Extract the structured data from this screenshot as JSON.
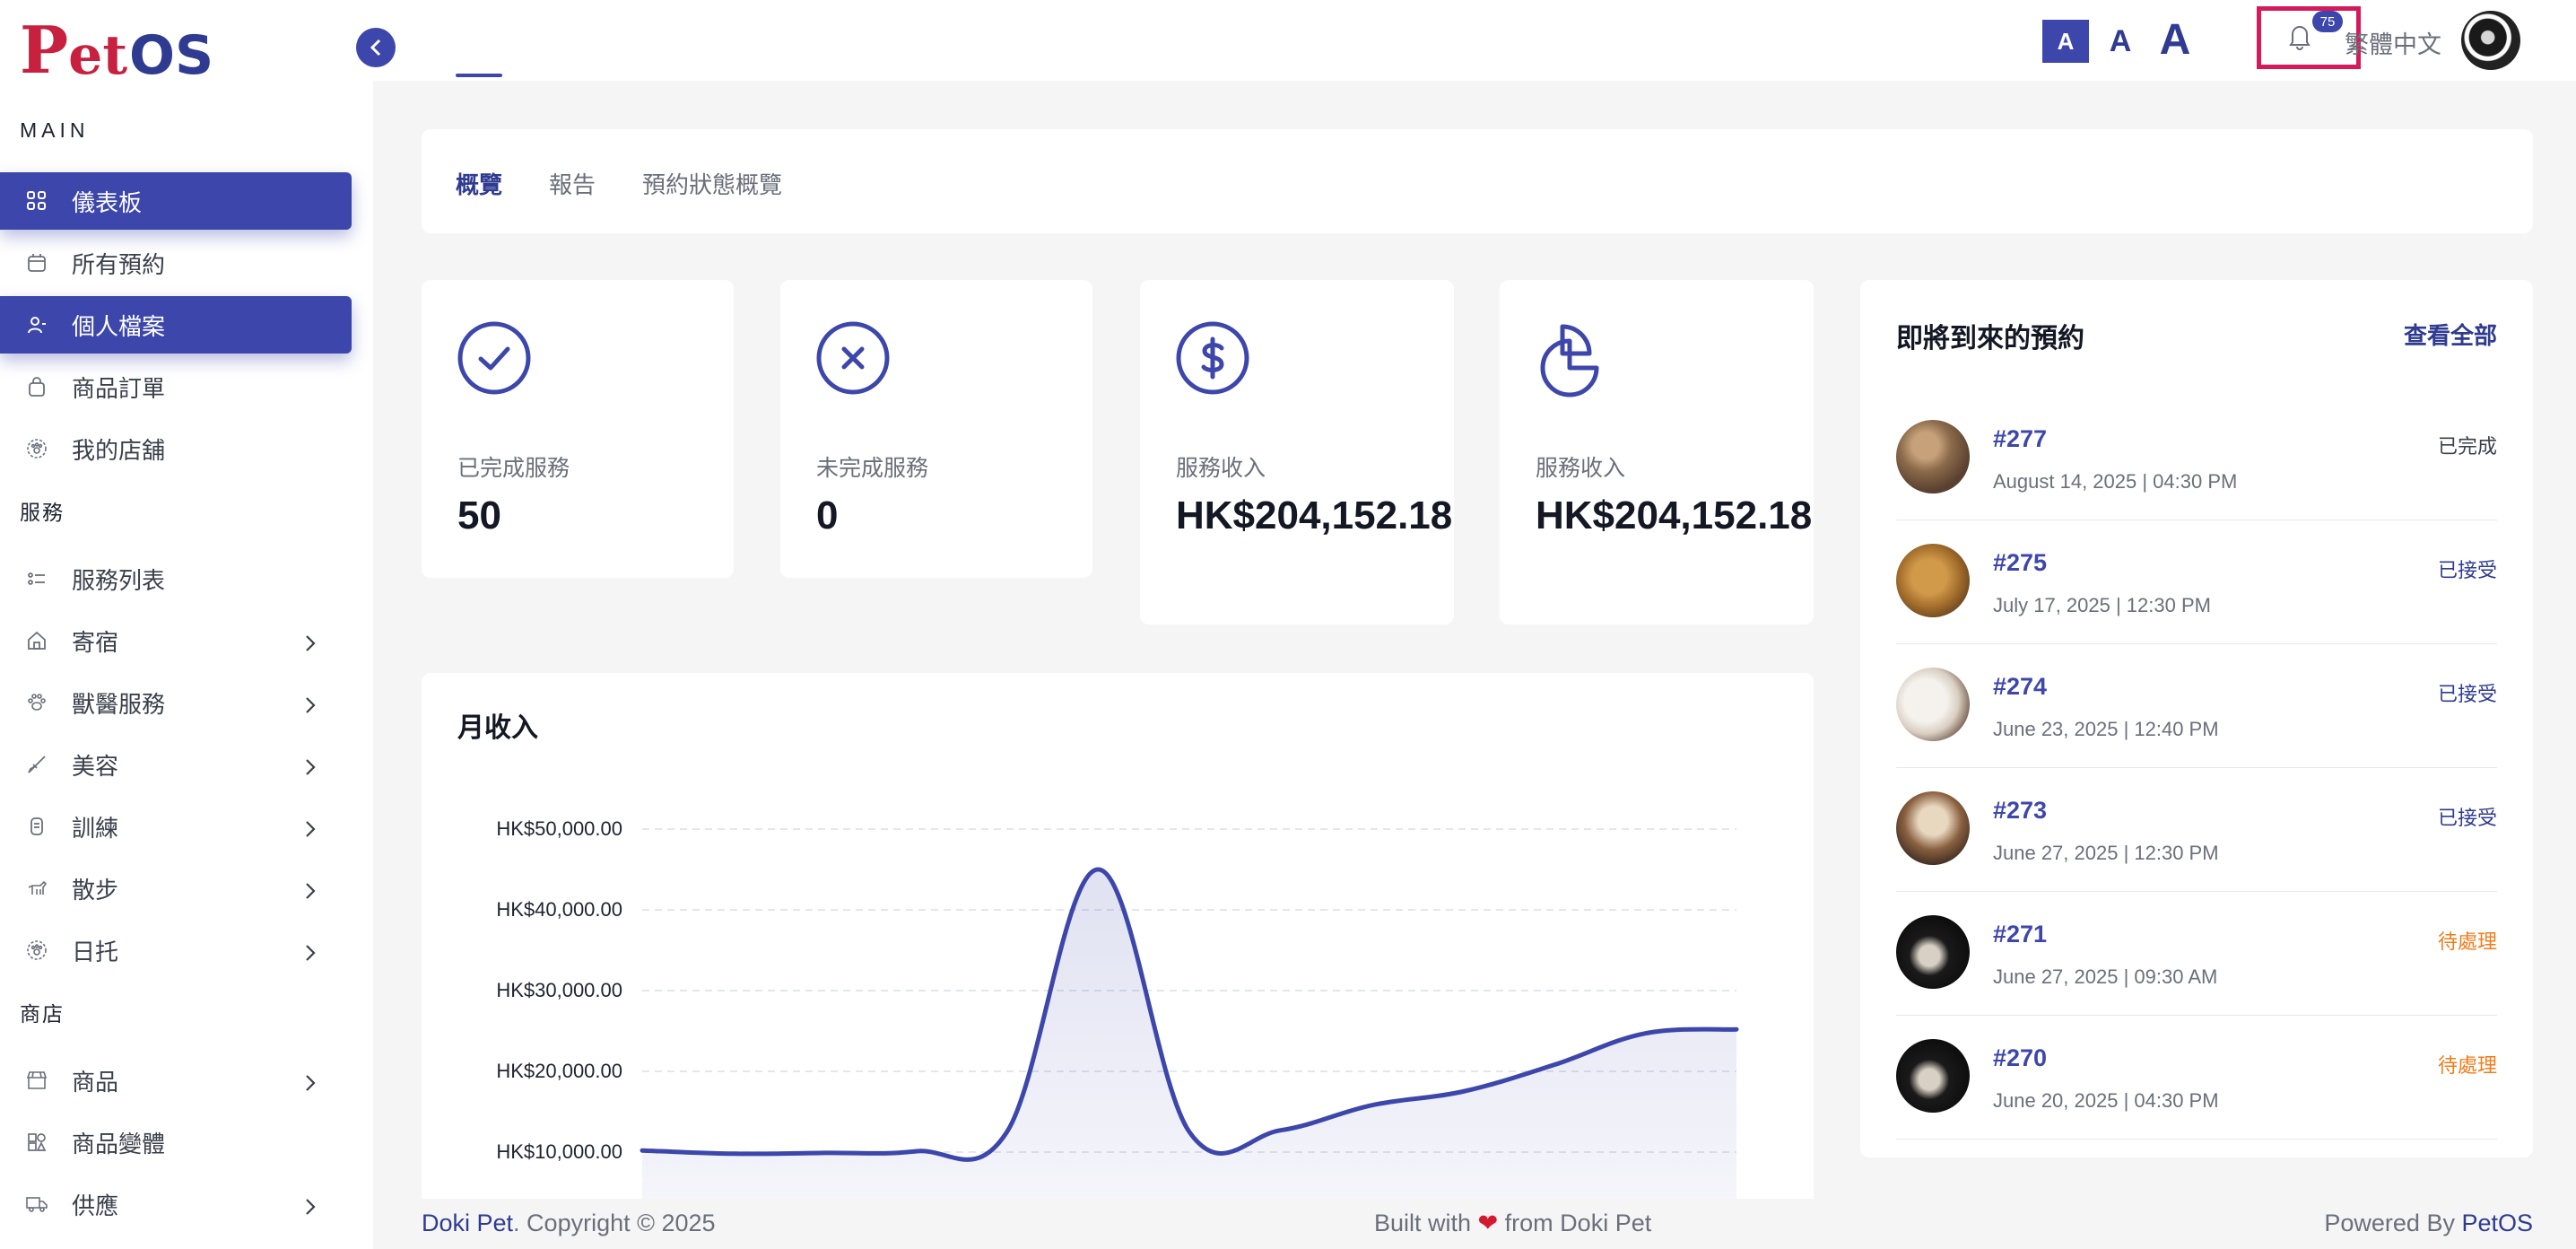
{
  "brand": {
    "logo_text_1": "P",
    "logo_text_2": "et",
    "logo_text_3": "OS"
  },
  "sidebar": {
    "section_main": "MAIN",
    "section_services": "服務",
    "section_shop": "商店",
    "items": [
      {
        "label": "儀表板",
        "icon": "grid-icon",
        "active": true
      },
      {
        "label": "所有預約",
        "icon": "calendar-icon",
        "active": false
      },
      {
        "label": "個人檔案",
        "icon": "user-icon",
        "active": true
      },
      {
        "label": "商品訂單",
        "icon": "bag-icon",
        "active": false
      },
      {
        "label": "我的店舖",
        "icon": "paw-badge-icon",
        "active": false
      },
      {
        "label": "服務列表",
        "icon": "list-icon",
        "active": false
      },
      {
        "label": "寄宿",
        "icon": "house-icon",
        "active": false
      },
      {
        "label": "獸醫服務",
        "icon": "paw-icon",
        "active": false
      },
      {
        "label": "美容",
        "icon": "brush-icon",
        "active": false
      },
      {
        "label": "訓練",
        "icon": "medal-icon",
        "active": false
      },
      {
        "label": "散步",
        "icon": "dog-walk-icon",
        "active": false
      },
      {
        "label": "日托",
        "icon": "paw-badge-icon",
        "active": false
      },
      {
        "label": "商品",
        "icon": "store-icon",
        "active": false
      },
      {
        "label": "商品變體",
        "icon": "variants-icon",
        "active": false
      },
      {
        "label": "供應",
        "icon": "truck-icon",
        "active": false
      }
    ]
  },
  "topbar": {
    "font_small": "A",
    "font_medium": "A",
    "font_large": "A",
    "notification_count": "75",
    "language": "繁體中文"
  },
  "tabs": [
    {
      "label": "概覽",
      "active": true
    },
    {
      "label": "報告",
      "active": false
    },
    {
      "label": "預約狀態概覽",
      "active": false
    }
  ],
  "stats": [
    {
      "label": "已完成服務",
      "value": "50",
      "icon": "check-circle-icon"
    },
    {
      "label": "未完成服務",
      "value": "0",
      "icon": "x-circle-icon"
    },
    {
      "label": "服務收入",
      "value": "HK$204,152.18",
      "icon": "dollar-circle-icon"
    },
    {
      "label": "服務收入",
      "value": "HK$204,152.18",
      "icon": "pie-chart-icon"
    }
  ],
  "chart": {
    "title": "月收入",
    "accent_color": "#3d47ab"
  },
  "chart_data": {
    "type": "area",
    "title": "月收入",
    "xlabel": "",
    "ylabel": "",
    "ylim": [
      0,
      50000
    ],
    "y_ticks": [
      "HK$50,000.00",
      "HK$40,000.00",
      "HK$30,000.00",
      "HK$20,000.00",
      "HK$10,000.00"
    ],
    "grid": true,
    "series": [
      {
        "values": [
          10200,
          9800,
          9900,
          10100,
          12500,
          45000,
          12500,
          12700,
          15800,
          17500,
          20800,
          24700,
          25200
        ]
      }
    ]
  },
  "upcoming": {
    "title": "即將到來的預約",
    "view_all": "查看全部",
    "items": [
      {
        "id": "#277",
        "date": "August 14, 2025 | 04:30 PM",
        "status": "已完成",
        "status_color": "#3a3f4b"
      },
      {
        "id": "#275",
        "date": "July 17, 2025 | 12:30 PM",
        "status": "已接受",
        "status_color": "#2f3b91"
      },
      {
        "id": "#274",
        "date": "June 23, 2025 | 12:40 PM",
        "status": "已接受",
        "status_color": "#2f3b91"
      },
      {
        "id": "#273",
        "date": "June 27, 2025 | 12:30 PM",
        "status": "已接受",
        "status_color": "#2f3b91"
      },
      {
        "id": "#271",
        "date": "June 27, 2025 | 09:30 AM",
        "status": "待處理",
        "status_color": "#f07c1b"
      },
      {
        "id": "#270",
        "date": "June 20, 2025 | 04:30 PM",
        "status": "待處理",
        "status_color": "#f07c1b"
      }
    ]
  },
  "footer": {
    "brand": "Doki Pet",
    "copyright": ". Copyright © 2025",
    "built_prefix": "Built with ",
    "heart": "❤",
    "built_suffix": " from Doki Pet",
    "powered_prefix": "Powered By ",
    "powered_brand": "PetOS"
  }
}
